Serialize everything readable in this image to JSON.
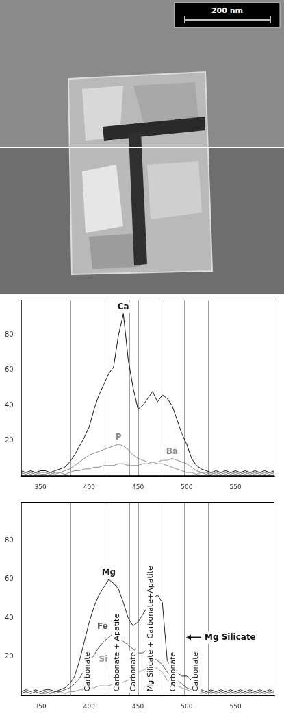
{
  "image": {
    "scale_bar": "200 nm"
  },
  "line_scan": {
    "boundaries": [
      381,
      416,
      441,
      450,
      476,
      497,
      522
    ],
    "regions": [
      "Carbonate",
      "Carbonate + Apatite",
      "Carbonate",
      "Mg-Silicate + Carbonate+Apatite",
      "Carbonate",
      "Carbonate"
    ]
  },
  "chart_data": [
    {
      "type": "line",
      "x": [
        330,
        335,
        340,
        345,
        350,
        355,
        360,
        365,
        370,
        375,
        380,
        385,
        390,
        395,
        400,
        405,
        410,
        415,
        420,
        425,
        430,
        435,
        440,
        445,
        450,
        455,
        460,
        465,
        470,
        475,
        480,
        485,
        490,
        495,
        500,
        505,
        510,
        515,
        520,
        525,
        530,
        535,
        540,
        545,
        550,
        555,
        560,
        565,
        570,
        575,
        580,
        585,
        590
      ],
      "xlim": [
        330,
        590
      ],
      "xticks": [
        350,
        400,
        450,
        500,
        550
      ],
      "ylim": [
        0,
        100
      ],
      "yticks": [
        20,
        40,
        60,
        80
      ],
      "grid": false,
      "series": [
        {
          "name": "Ca",
          "color": "#111111",
          "values": [
            3,
            2,
            3,
            2,
            3,
            3,
            2,
            3,
            4,
            5,
            8,
            12,
            17,
            22,
            28,
            38,
            46,
            52,
            58,
            62,
            80,
            92,
            66,
            50,
            38,
            40,
            44,
            48,
            42,
            46,
            44,
            40,
            32,
            24,
            18,
            10,
            6,
            4,
            3,
            2,
            3,
            2,
            3,
            2,
            3,
            2,
            3,
            2,
            3,
            2,
            3,
            2,
            3
          ]
        },
        {
          "name": "P",
          "color": "#8c8c8c",
          "values": [
            2,
            1,
            2,
            1,
            2,
            2,
            1,
            2,
            2,
            3,
            4,
            6,
            8,
            10,
            12,
            13,
            14,
            15,
            16,
            17,
            18,
            17,
            15,
            12,
            10,
            9,
            8,
            8,
            7,
            7,
            6,
            5,
            4,
            3,
            2,
            2,
            1,
            2,
            1,
            2,
            1,
            2,
            1,
            2,
            1,
            2,
            1,
            2,
            1,
            2,
            1,
            2,
            1
          ]
        },
        {
          "name": "Ba",
          "color": "#8c8c8c",
          "values": [
            1,
            2,
            1,
            2,
            1,
            1,
            2,
            1,
            2,
            1,
            2,
            3,
            3,
            4,
            4,
            5,
            5,
            6,
            6,
            6,
            7,
            7,
            6,
            6,
            6,
            7,
            7,
            8,
            8,
            9,
            9,
            10,
            9,
            8,
            7,
            5,
            3,
            2,
            2,
            1,
            2,
            1,
            2,
            1,
            2,
            1,
            2,
            1,
            2,
            1,
            2,
            1,
            2
          ]
        }
      ]
    },
    {
      "type": "line",
      "x": [
        330,
        335,
        340,
        345,
        350,
        355,
        360,
        365,
        370,
        375,
        380,
        385,
        390,
        395,
        400,
        405,
        410,
        415,
        420,
        425,
        430,
        435,
        440,
        445,
        450,
        455,
        460,
        465,
        470,
        475,
        480,
        485,
        490,
        495,
        500,
        505,
        510,
        515,
        520,
        525,
        530,
        535,
        540,
        545,
        550,
        555,
        560,
        565,
        570,
        575,
        580,
        585,
        590
      ],
      "xlim": [
        330,
        590
      ],
      "xticks": [
        350,
        400,
        450,
        500,
        550
      ],
      "ylim": [
        0,
        100
      ],
      "yticks": [
        20,
        40,
        60,
        80
      ],
      "grid": false,
      "series": [
        {
          "name": "Mg",
          "color": "#222222",
          "values": [
            2,
            3,
            2,
            3,
            2,
            3,
            3,
            2,
            3,
            4,
            6,
            10,
            18,
            28,
            38,
            46,
            52,
            56,
            60,
            58,
            55,
            48,
            40,
            36,
            38,
            42,
            46,
            50,
            52,
            48,
            18,
            14,
            12,
            10,
            10,
            8,
            5,
            3,
            2,
            3,
            2,
            3,
            2,
            3,
            2,
            3,
            2,
            3,
            2,
            3,
            2,
            3,
            2
          ]
        },
        {
          "name": "Fe",
          "color": "#555555",
          "values": [
            1,
            2,
            1,
            2,
            1,
            2,
            1,
            2,
            2,
            3,
            4,
            6,
            9,
            13,
            17,
            21,
            25,
            28,
            30,
            32,
            30,
            28,
            26,
            24,
            22,
            22,
            24,
            20,
            18,
            16,
            12,
            10,
            8,
            6,
            4,
            3,
            2,
            2,
            1,
            2,
            1,
            2,
            1,
            2,
            1,
            2,
            1,
            2,
            1,
            2,
            1,
            2,
            1
          ]
        },
        {
          "name": "Si",
          "color": "#999999",
          "values": [
            1,
            2,
            1,
            2,
            1,
            1,
            2,
            1,
            2,
            1,
            2,
            2,
            3,
            3,
            4,
            4,
            5,
            5,
            5,
            6,
            6,
            7,
            8,
            10,
            12,
            13,
            14,
            15,
            14,
            12,
            8,
            6,
            5,
            4,
            3,
            2,
            2,
            1,
            2,
            1,
            2,
            1,
            2,
            1,
            2,
            1,
            2,
            1,
            2,
            1,
            2,
            1,
            2
          ]
        }
      ],
      "annotations": [
        {
          "text": "Mg Silicate",
          "x": 498,
          "y": 30
        }
      ]
    }
  ]
}
